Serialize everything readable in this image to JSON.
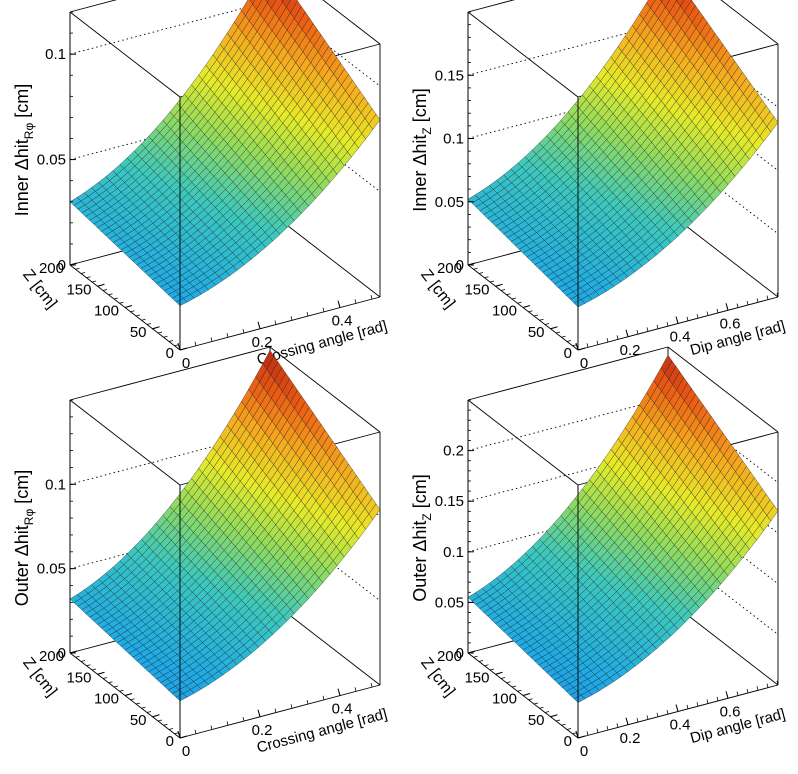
{
  "chart_data": [
    {
      "type": "surface",
      "ylabel": "Z [cm]",
      "zlabel_main": "Inner",
      "zlabel_sub": "Rφ",
      "zlabel_hit": "Δhit",
      "zlabel_unit": "[cm]",
      "xlabel": "Crossing angle [rad]",
      "x_range": [
        0,
        0.5
      ],
      "y_range": [
        0,
        200
      ],
      "z_range": [
        0,
        0.12
      ],
      "x_ticks": [
        "0",
        "0.2",
        "0.4"
      ],
      "y_ticks": [
        "200",
        "150",
        "100",
        "50",
        "0"
      ],
      "z_ticks": [
        "0",
        "0.05",
        "0.1"
      ],
      "z_tick_values": [
        0,
        0.05,
        0.1
      ],
      "x_tick_values": [
        0,
        0.2,
        0.4
      ],
      "corner_values": {
        "x0_y200": 0.03,
        "x0_y0": 0.021,
        "x_max_y200": 0.119,
        "x_max_y0": 0.084
      }
    },
    {
      "type": "surface",
      "ylabel": "Z [cm]",
      "zlabel_main": "Inner",
      "zlabel_sub": "Z",
      "zlabel_hit": "Δhit",
      "zlabel_unit": "[cm]",
      "xlabel": "Dip angle [rad]",
      "x_range": [
        0,
        0.8
      ],
      "y_range": [
        0,
        200
      ],
      "z_range": [
        0,
        0.2
      ],
      "x_ticks": [
        "0",
        "0.2",
        "0.4",
        "0.6"
      ],
      "y_ticks": [
        "200",
        "150",
        "100",
        "50",
        "0"
      ],
      "z_ticks": [
        "0",
        "0.05",
        "0.1",
        "0.15"
      ],
      "z_tick_values": [
        0,
        0.05,
        0.1,
        0.15
      ],
      "x_tick_values": [
        0,
        0.2,
        0.4,
        0.6
      ],
      "corner_values": {
        "x0_y200": 0.052,
        "x0_y0": 0.034,
        "x_max_y200": 0.194,
        "x_max_y0": 0.138
      }
    },
    {
      "type": "surface",
      "ylabel": "Z [cm]",
      "zlabel_main": "Outer",
      "zlabel_sub": "Rφ",
      "zlabel_hit": "Δhit",
      "zlabel_unit": "[cm]",
      "xlabel": "Crossing angle [rad]",
      "x_range": [
        0,
        0.5
      ],
      "y_range": [
        0,
        200
      ],
      "z_range": [
        0,
        0.15
      ],
      "x_ticks": [
        "0",
        "0.2",
        "0.4"
      ],
      "y_ticks": [
        "200",
        "150",
        "100",
        "50",
        "0"
      ],
      "z_ticks": [
        "0",
        "0.05",
        "0.1"
      ],
      "z_tick_values": [
        0,
        0.05,
        0.1
      ],
      "x_tick_values": [
        0,
        0.2,
        0.4
      ],
      "corner_values": {
        "x0_y200": 0.032,
        "x0_y0": 0.022,
        "x_max_y200": 0.148,
        "x_max_y0": 0.104
      }
    },
    {
      "type": "surface",
      "ylabel": "Z [cm]",
      "zlabel_main": "Outer",
      "zlabel_sub": "Z",
      "zlabel_hit": "Δhit",
      "zlabel_unit": "[cm]",
      "xlabel": "Dip angle [rad]",
      "x_range": [
        0,
        0.8
      ],
      "y_range": [
        0,
        200
      ],
      "z_range": [
        0,
        0.25
      ],
      "x_ticks": [
        "0",
        "0.2",
        "0.4",
        "0.6"
      ],
      "y_ticks": [
        "200",
        "150",
        "100",
        "50",
        "0"
      ],
      "z_ticks": [
        "0",
        "0.05",
        "0.1",
        "0.15",
        "0.2"
      ],
      "z_tick_values": [
        0,
        0.05,
        0.1,
        0.15,
        0.2
      ],
      "x_tick_values": [
        0,
        0.2,
        0.4,
        0.6
      ],
      "corner_values": {
        "x0_y200": 0.055,
        "x0_y0": 0.035,
        "x_max_y200": 0.242,
        "x_max_y0": 0.172
      }
    }
  ]
}
